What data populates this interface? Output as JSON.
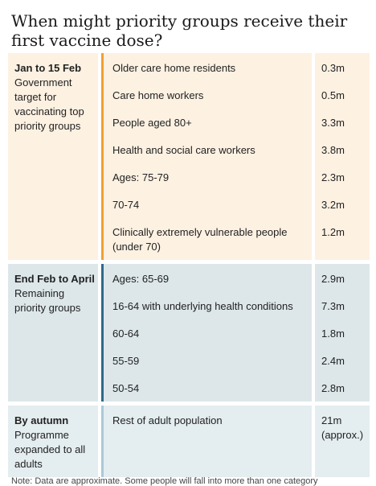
{
  "title": "When might priority groups receive their first vaccine dose?",
  "sections": [
    {
      "period": "Jan to 15 Feb",
      "description": "Government target for vaccinating top priority groups",
      "rows": [
        {
          "group": "Older care home residents",
          "doses": "0.3m"
        },
        {
          "group": "Care home workers",
          "doses": "0.5m"
        },
        {
          "group": "People aged 80+",
          "doses": "3.3m"
        },
        {
          "group": "Health and social care workers",
          "doses": "3.8m"
        },
        {
          "group": "Ages: 75-79",
          "doses": "2.3m"
        },
        {
          "group": "70-74",
          "doses": "3.2m"
        },
        {
          "group": "Clinically extremely vulnerable people (under 70)",
          "doses": "1.2m"
        }
      ]
    },
    {
      "period": "End Feb to April",
      "description": "Remaining priority groups",
      "rows": [
        {
          "group": "Ages: 65-69",
          "doses": "2.9m"
        },
        {
          "group": "16-64 with underlying health conditions",
          "doses": "7.3m"
        },
        {
          "group": "60-64",
          "doses": "1.8m"
        },
        {
          "group": "55-59",
          "doses": "2.4m"
        },
        {
          "group": "50-54",
          "doses": "2.8m"
        }
      ]
    },
    {
      "period": "By autumn",
      "description": "Programme expanded to all adults",
      "rows": [
        {
          "group": "Rest of adult population",
          "doses": "21m (approx.)"
        }
      ]
    }
  ],
  "note": "Note: Data are approximate. Some people will fall into more than one category"
}
